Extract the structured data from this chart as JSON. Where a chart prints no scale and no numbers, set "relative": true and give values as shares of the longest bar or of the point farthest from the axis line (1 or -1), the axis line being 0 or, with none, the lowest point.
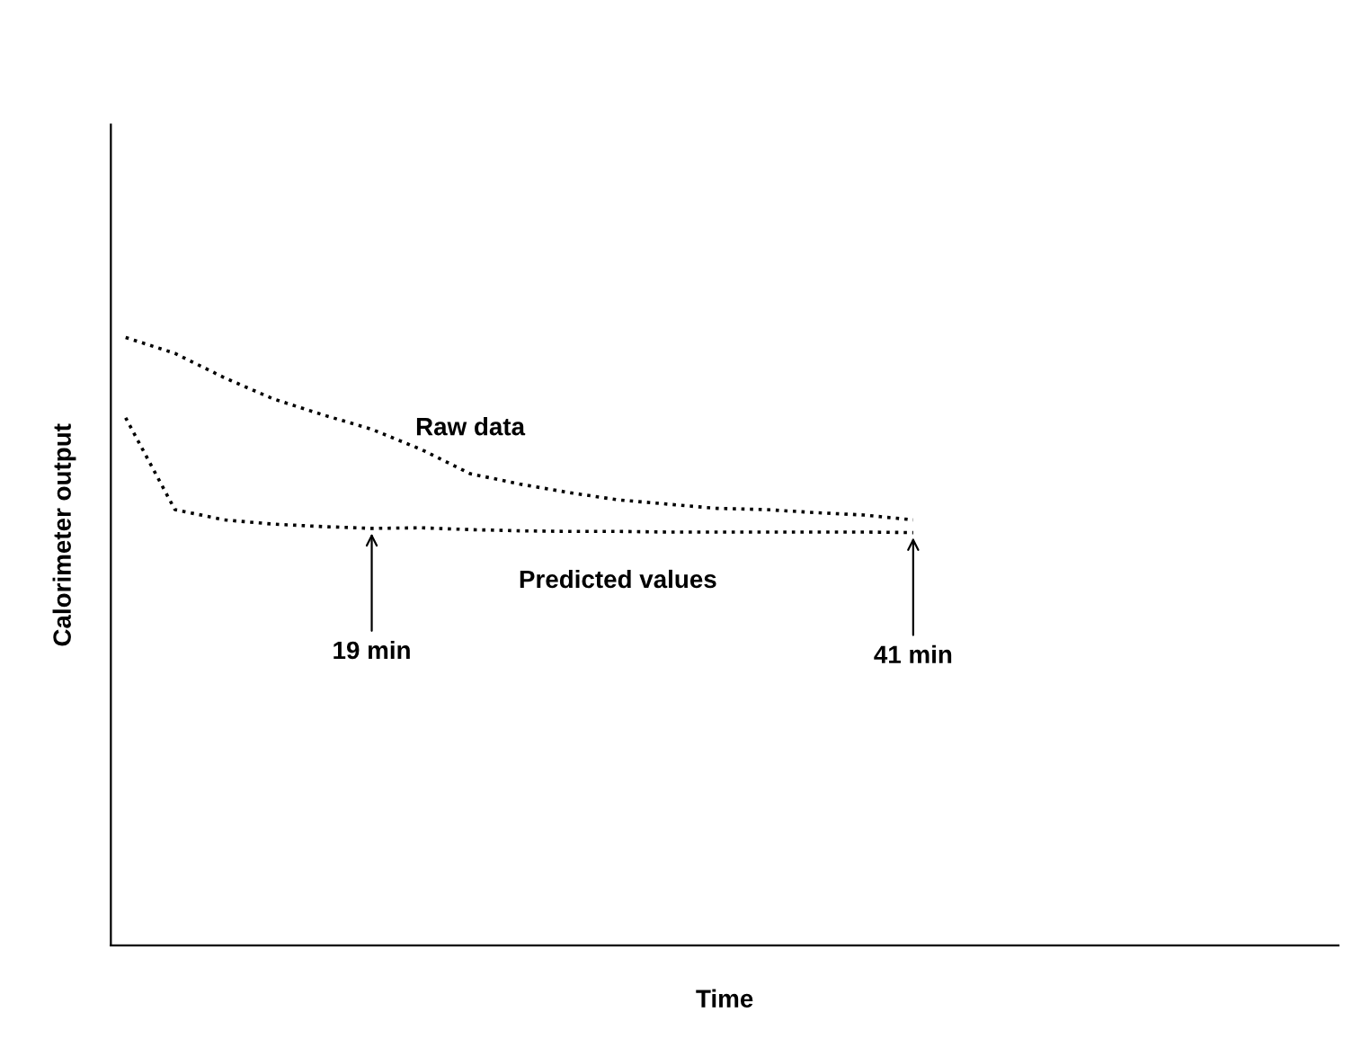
{
  "chart_data": {
    "type": "line",
    "xlabel": "Time",
    "ylabel": "Calorimeter output",
    "relative": true,
    "line_style": "dotted",
    "marker": "none",
    "categories": [
      null,
      null,
      null,
      null,
      null,
      null,
      null,
      null,
      null,
      null,
      null,
      null,
      null,
      null,
      null,
      null,
      null
    ],
    "series": [
      {
        "name": "Raw data",
        "color": "#000000",
        "values": [
          1.0,
          0.974,
          0.934,
          0.899,
          0.873,
          0.849,
          0.816,
          0.776,
          0.759,
          0.745,
          0.733,
          0.726,
          0.719,
          0.717,
          0.712,
          0.708,
          0.7
        ]
      },
      {
        "name": "Predicted values",
        "color": "#000000",
        "values": [
          0.868,
          0.717,
          0.7,
          0.693,
          0.689,
          0.686,
          0.687,
          0.684,
          0.682,
          0.681,
          0.681,
          0.68,
          0.68,
          0.68,
          0.68,
          0.68,
          0.679
        ]
      }
    ],
    "annotations": [
      {
        "text": "19 min",
        "y": 0.686
      },
      {
        "text": "41 min",
        "y": 0.679
      }
    ]
  }
}
